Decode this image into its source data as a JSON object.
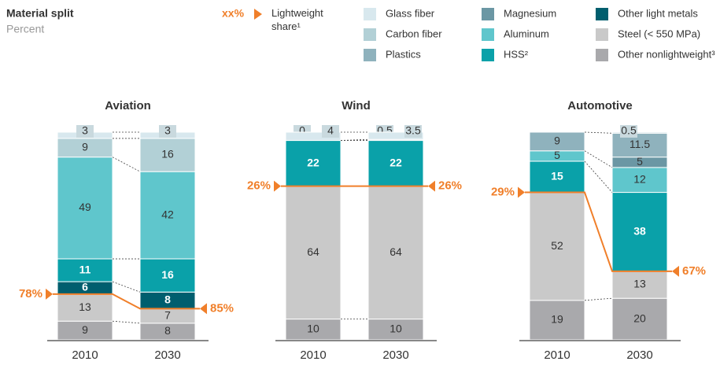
{
  "header": {
    "title": "Material split",
    "subtitle": "Percent",
    "legend_marker": "xx%",
    "legend_marker_label": "Lightweight share¹"
  },
  "chart_data": [
    {
      "type": "bar",
      "title": "Aviation",
      "categories": [
        "2010",
        "2030"
      ],
      "ylim": [
        0,
        100
      ],
      "series": [
        {
          "name": "Glass fiber",
          "color": "#d8e8ee",
          "values": [
            3,
            3
          ]
        },
        {
          "name": "Carbon fiber",
          "color": "#b2d0d6",
          "values": [
            9,
            16
          ]
        },
        {
          "name": "Plastics",
          "color": "#8fb2bd",
          "values": [
            null,
            null
          ]
        },
        {
          "name": "Magnesium",
          "color": "#6b97a4",
          "values": [
            null,
            null
          ]
        },
        {
          "name": "Aluminum",
          "color": "#5fc6cc",
          "values": [
            49,
            42
          ]
        },
        {
          "name": "HSS²",
          "color": "#0aa1a9",
          "values": [
            11,
            16
          ]
        },
        {
          "name": "Other light metals",
          "color": "#005e6e",
          "values": [
            6,
            8
          ]
        },
        {
          "name": "Steel (< 550 MPa)",
          "color": "#c9c9c9",
          "values": [
            13,
            7
          ]
        },
        {
          "name": "Other nonlightweight³",
          "color": "#a9a9ac",
          "values": [
            9,
            8
          ]
        }
      ],
      "lightweight_share": {
        "values": [
          78,
          85
        ],
        "value_labels": [
          "78%",
          "85%"
        ]
      }
    },
    {
      "type": "bar",
      "title": "Wind",
      "categories": [
        "2010",
        "2030"
      ],
      "ylim": [
        0,
        100
      ],
      "series": [
        {
          "name": "Glass fiber",
          "color": "#d8e8ee",
          "values": [
            4,
            3.5
          ]
        },
        {
          "name": "Carbon fiber",
          "color": "#b2d0d6",
          "values": [
            0,
            0.5
          ]
        },
        {
          "name": "Plastics",
          "color": "#8fb2bd",
          "values": [
            null,
            null
          ]
        },
        {
          "name": "Magnesium",
          "color": "#6b97a4",
          "values": [
            null,
            null
          ]
        },
        {
          "name": "Aluminum",
          "color": "#5fc6cc",
          "values": [
            null,
            null
          ]
        },
        {
          "name": "HSS²",
          "color": "#0aa1a9",
          "values": [
            22,
            22
          ]
        },
        {
          "name": "Other light metals",
          "color": "#005e6e",
          "values": [
            null,
            null
          ]
        },
        {
          "name": "Steel (< 550 MPa)",
          "color": "#c9c9c9",
          "values": [
            64,
            64
          ]
        },
        {
          "name": "Other nonlightweight³",
          "color": "#a9a9ac",
          "values": [
            10,
            10
          ]
        }
      ],
      "lightweight_share": {
        "values": [
          26,
          26
        ],
        "value_labels": [
          "26%",
          "26%"
        ]
      }
    },
    {
      "type": "bar",
      "title": "Automotive",
      "categories": [
        "2010",
        "2030"
      ],
      "ylim": [
        0,
        100
      ],
      "series": [
        {
          "name": "Glass fiber",
          "color": "#d8e8ee",
          "values": [
            null,
            null
          ]
        },
        {
          "name": "Carbon fiber",
          "color": "#b2d0d6",
          "values": [
            null,
            0.5
          ]
        },
        {
          "name": "Plastics",
          "color": "#8fb2bd",
          "values": [
            9,
            11.5
          ]
        },
        {
          "name": "Magnesium",
          "color": "#6b97a4",
          "values": [
            null,
            5
          ]
        },
        {
          "name": "Aluminum",
          "color": "#5fc6cc",
          "values": [
            5,
            12
          ]
        },
        {
          "name": "HSS²",
          "color": "#0aa1a9",
          "values": [
            15,
            38
          ]
        },
        {
          "name": "Other light metals",
          "color": "#005e6e",
          "values": [
            null,
            null
          ]
        },
        {
          "name": "Steel (< 550 MPa)",
          "color": "#c9c9c9",
          "values": [
            52,
            13
          ]
        },
        {
          "name": "Other nonlightweight³",
          "color": "#a9a9ac",
          "values": [
            19,
            20
          ]
        }
      ],
      "lightweight_share": {
        "values": [
          29,
          67
        ],
        "value_labels": [
          "29%",
          "67%"
        ]
      }
    }
  ]
}
